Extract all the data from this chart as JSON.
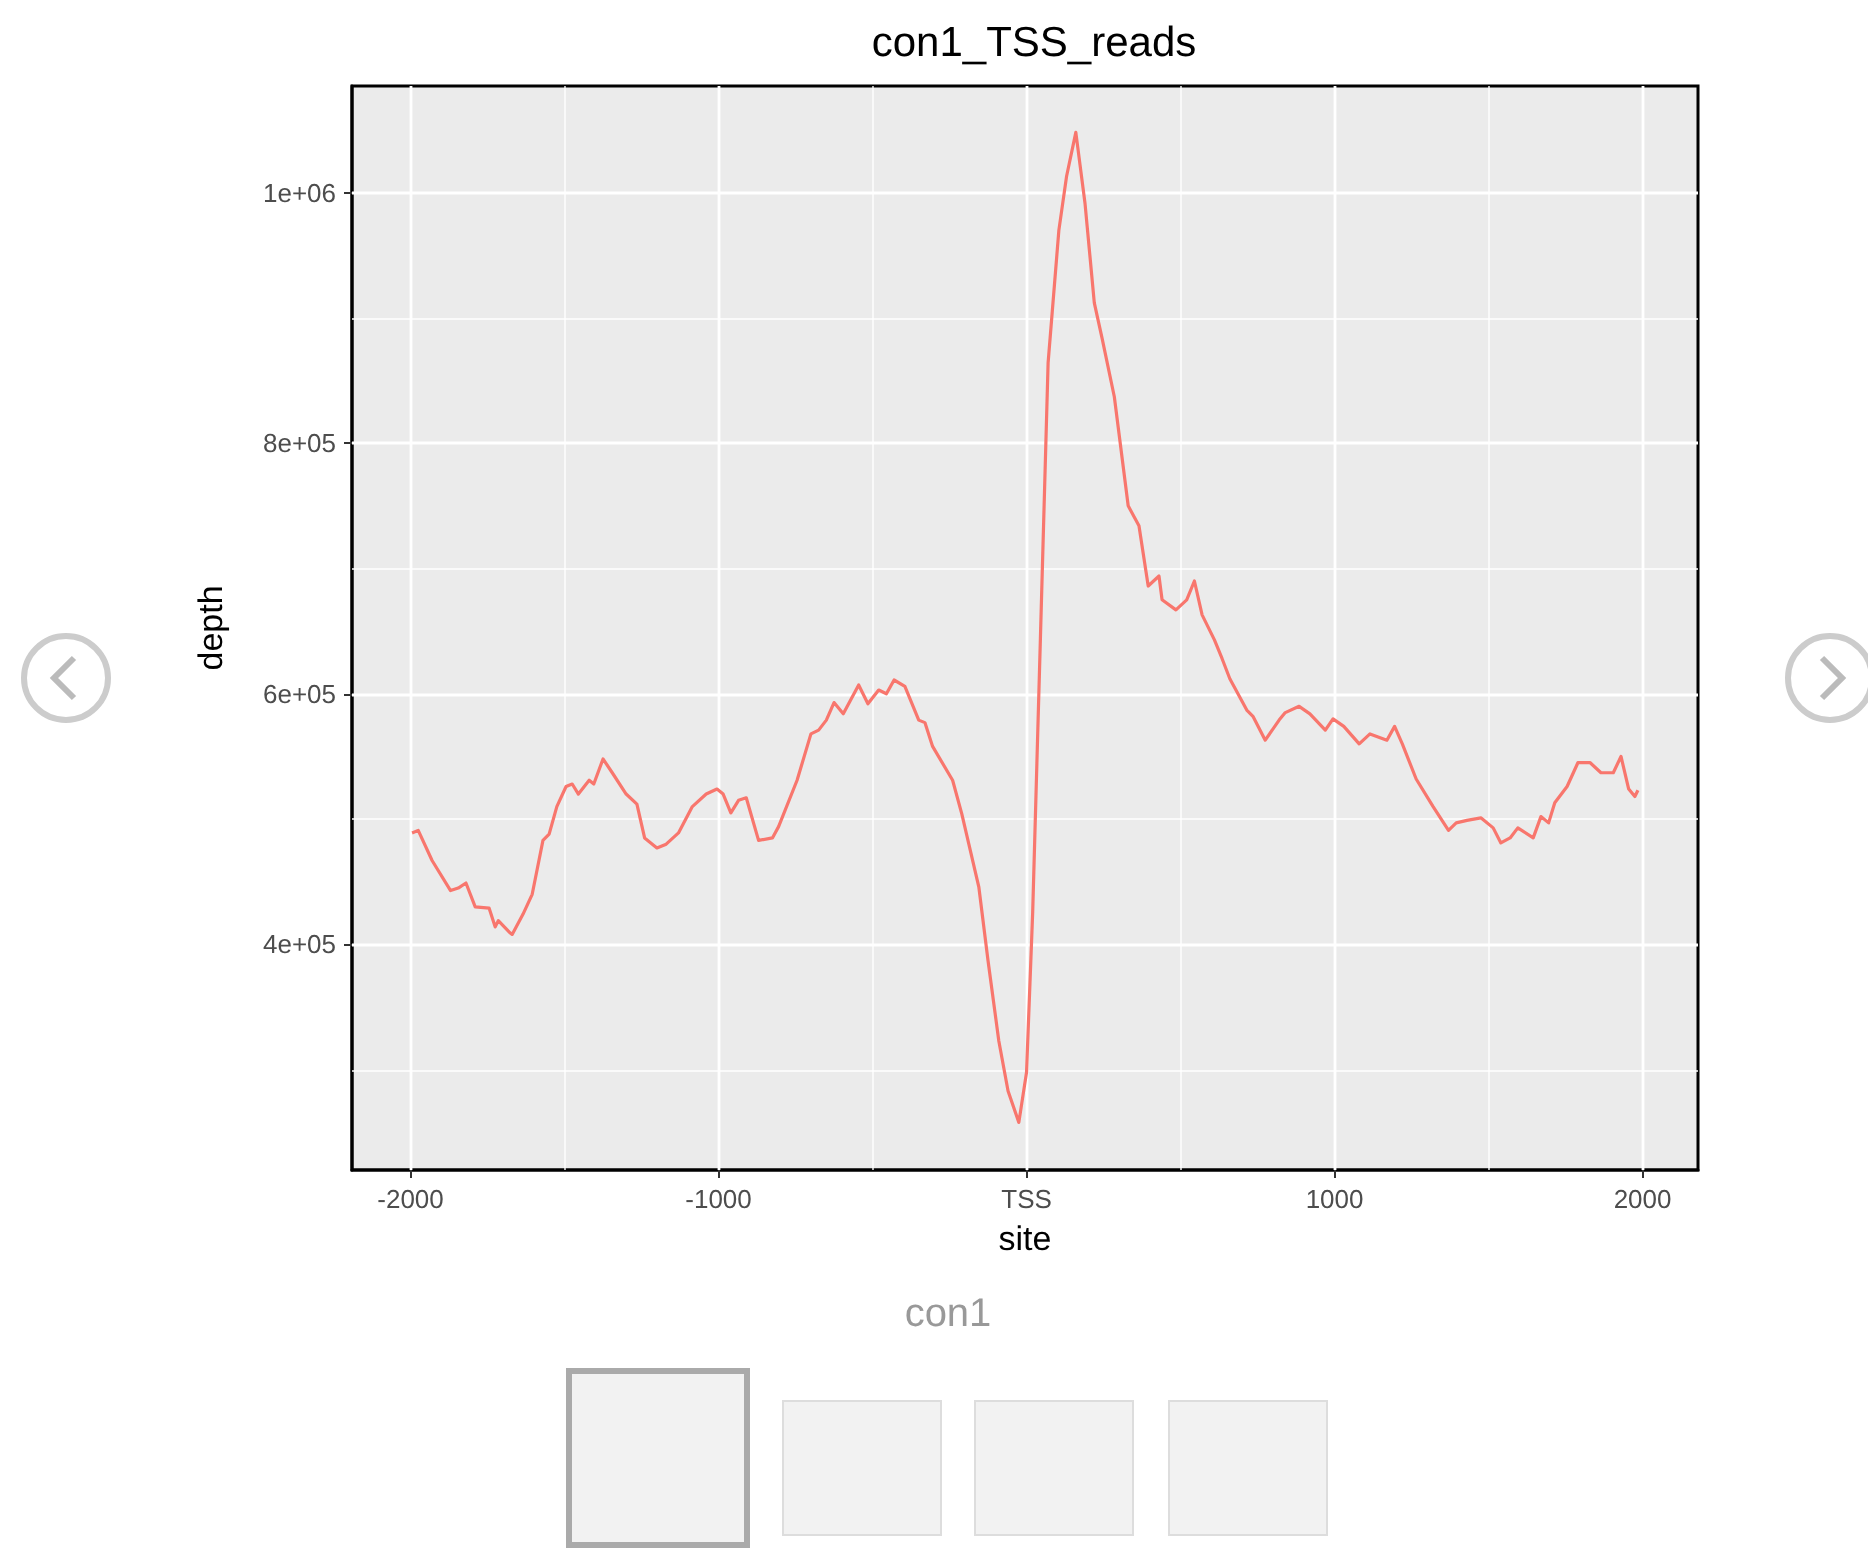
{
  "chart_data": {
    "type": "line",
    "title": "con1_TSS_reads",
    "xlabel": "site",
    "ylabel": "depth",
    "annotations": [
      "con1"
    ],
    "grid": true,
    "xlim": [
      -2190,
      2180
    ],
    "ylim": [
      220000,
      1085000
    ],
    "xticks": [
      -2000,
      {
        "value": -1500,
        "label": null
      },
      -1000,
      {
        "value": -500,
        "label": null
      },
      {
        "value": 0,
        "label": "TSS"
      },
      {
        "value": 500,
        "label": null
      },
      1000,
      {
        "value": 1500,
        "label": null
      },
      2000
    ],
    "yticks": [
      {
        "value": 300000,
        "label": null
      },
      {
        "value": 400000,
        "label": "4e+05"
      },
      {
        "value": 500000,
        "label": null
      },
      {
        "value": 600000,
        "label": "6e+05"
      },
      {
        "value": 700000,
        "label": null
      },
      {
        "value": 800000,
        "label": "8e+05"
      },
      {
        "value": 900000,
        "label": null
      },
      {
        "value": 1000000,
        "label": "1e+06"
      }
    ],
    "x": [
      -1995,
      -1975,
      -1930,
      -1870,
      -1845,
      -1820,
      -1790,
      -1745,
      -1725,
      -1715,
      -1680,
      -1670,
      -1635,
      -1605,
      -1570,
      -1550,
      -1525,
      -1495,
      -1475,
      -1455,
      -1420,
      -1405,
      -1375,
      -1345,
      -1300,
      -1265,
      -1240,
      -1200,
      -1170,
      -1130,
      -1085,
      -1040,
      -1005,
      -985,
      -960,
      -935,
      -910,
      -870,
      -825,
      -805,
      -745,
      -700,
      -675,
      -650,
      -625,
      -595,
      -545,
      -515,
      -480,
      -455,
      -430,
      -395,
      -350,
      -330,
      -305,
      -240,
      -210,
      -155,
      -125,
      -90,
      -60,
      -25,
      0,
      20,
      45,
      70,
      105,
      130,
      160,
      190,
      220,
      245,
      285,
      330,
      365,
      395,
      430,
      440,
      485,
      520,
      545,
      570,
      610,
      635,
      660,
      715,
      735,
      775,
      820,
      840,
      885,
      920,
      970,
      995,
      1030,
      1080,
      1115,
      1170,
      1195,
      1220,
      1265,
      1320,
      1370,
      1395,
      1430,
      1475,
      1515,
      1540,
      1570,
      1595,
      1645,
      1670,
      1695,
      1715,
      1755,
      1790,
      1830,
      1865,
      1905,
      1930,
      1955,
      1975,
      1985
    ],
    "series": [
      {
        "color": "#f8766d",
        "values": [
          489000,
          491000,
          467000,
          443000,
          445000,
          449000,
          430000,
          429000,
          414000,
          419000,
          410000,
          408000,
          424000,
          440000,
          483000,
          488000,
          510000,
          526000,
          528000,
          520000,
          531000,
          528000,
          548000,
          537000,
          520000,
          512000,
          485000,
          477000,
          480000,
          489000,
          510000,
          520000,
          524000,
          520000,
          505000,
          515000,
          517000,
          483000,
          485000,
          494000,
          531000,
          568000,
          571000,
          579000,
          593000,
          584000,
          607000,
          592000,
          603000,
          600000,
          611000,
          606000,
          579000,
          577000,
          558000,
          531000,
          504000,
          446000,
          387000,
          323000,
          283000,
          258000,
          298000,
          426000,
          644000,
          864000,
          970000,
          1013000,
          1048000,
          991000,
          912000,
          884000,
          837000,
          750000,
          734000,
          686000,
          694000,
          675000,
          667000,
          675000,
          690000,
          663000,
          643000,
          628000,
          612000,
          587000,
          582000,
          563000,
          579000,
          585000,
          590000,
          584000,
          571000,
          580000,
          574000,
          560000,
          568000,
          563000,
          574000,
          560000,
          532000,
          510000,
          491000,
          497000,
          499000,
          501000,
          493000,
          481000,
          485000,
          493000,
          485000,
          502000,
          497000,
          513000,
          526000,
          545000,
          545000,
          537000,
          537000,
          550000,
          524000,
          518000,
          523000
        ]
      }
    ]
  }
}
